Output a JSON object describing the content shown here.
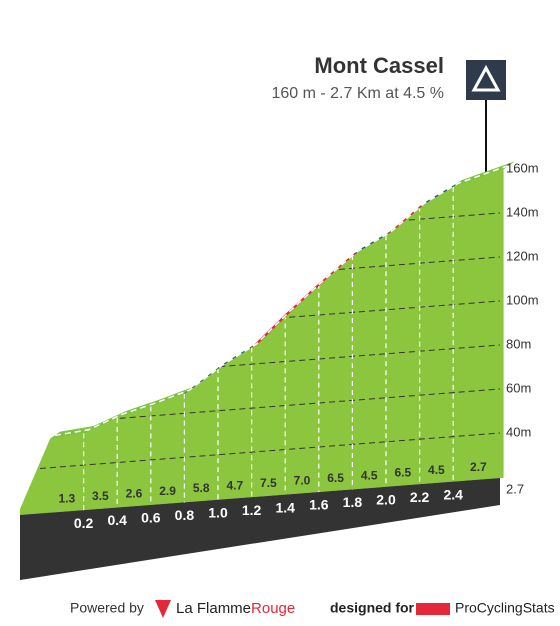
{
  "chart_data": {
    "type": "profile",
    "title": "Mont Cassel",
    "subtitle": "160 m - 2.7 Km at 4.5 %",
    "x": [
      0,
      0.2,
      0.4,
      0.6,
      0.8,
      1.0,
      1.2,
      1.4,
      1.6,
      1.8,
      2.0,
      2.2,
      2.4,
      2.7
    ],
    "values": [
      37.3,
      39.9,
      46.9,
      52.1,
      57.9,
      69.5,
      78.9,
      93.9,
      107.9,
      120.9,
      129.9,
      142.9,
      151.9,
      160
    ],
    "xticks": [
      0.2,
      0.4,
      0.6,
      0.8,
      {
        "value": 1,
        "label": "1.0"
      },
      1.2,
      1.4,
      1.6,
      1.8,
      {
        "value": 2,
        "label": "2.0"
      },
      2.2,
      2.4,
      2.7
    ],
    "gradients": [
      1.3,
      3.5,
      2.6,
      2.9,
      5.8,
      4.7,
      7.5,
      7,
      6.5,
      4.5,
      6.5,
      4.5,
      2.7
    ],
    "gradient_labels": [
      "1.3",
      "3.5",
      "2.6",
      "2.9",
      "5.8",
      "4.7",
      "7.5",
      "7.0",
      "6.5",
      "4.5",
      "6.5",
      "4.5",
      "2.7"
    ],
    "segment_colors": [
      "#7dc242",
      "#7dc242",
      "#7dc242",
      "#7dc242",
      "#1d5a87",
      "#1d5a87",
      "#e4283a",
      "#e4283a",
      "#e4283a",
      "#1d5a87",
      "#e4283a",
      "#1d5a87",
      "#7dc242"
    ],
    "color": "#8cc63f",
    "ylim": [
      40,
      160
    ],
    "yticks": [
      {
        "value": 160,
        "label": "160m"
      },
      {
        "value": 140,
        "label": "140m"
      },
      {
        "value": 120,
        "label": "120m"
      },
      {
        "value": 100,
        "label": "100m"
      },
      {
        "value": 80,
        "label": "80m"
      },
      {
        "value": 60,
        "label": "60m"
      },
      {
        "value": 40,
        "label": "40m"
      }
    ],
    "grid": true
  },
  "footer": {
    "powered_by": "Powered by",
    "brand_a": "La Flamme",
    "brand_b": "Rouge",
    "designed_for": "designed for",
    "site": "ProCyclingStats"
  }
}
